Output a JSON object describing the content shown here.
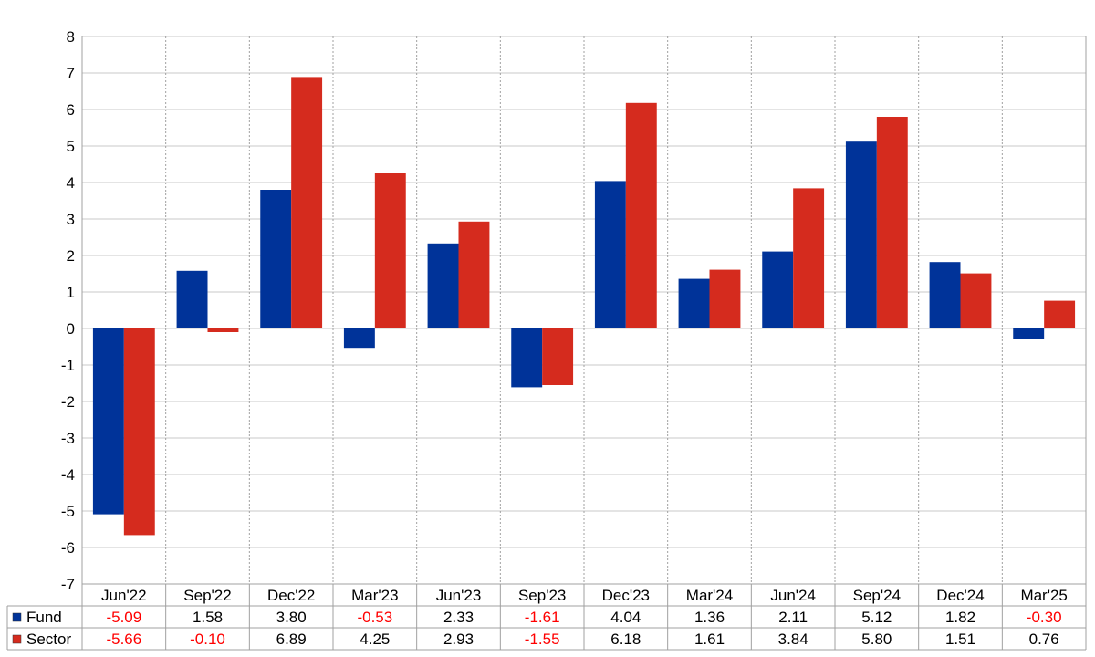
{
  "chart_data": {
    "type": "bar",
    "title": "",
    "xlabel": "",
    "ylabel": "",
    "ylim": [
      -7,
      8
    ],
    "yticks": [
      -7,
      -6,
      -5,
      -4,
      -3,
      -2,
      -1,
      0,
      1,
      2,
      3,
      4,
      5,
      6,
      7,
      8
    ],
    "grid": true,
    "legend": "data-table",
    "categories": [
      "Jun'22",
      "Sep'22",
      "Dec'22",
      "Mar'23",
      "Jun'23",
      "Sep'23",
      "Dec'23",
      "Mar'24",
      "Jun'24",
      "Sep'24",
      "Dec'24",
      "Mar'25"
    ],
    "series": [
      {
        "name": "Fund",
        "color": "#003399",
        "values": [
          -5.09,
          1.58,
          3.8,
          -0.53,
          2.33,
          -1.61,
          4.04,
          1.36,
          2.11,
          5.12,
          1.82,
          -0.3
        ],
        "labels": [
          "-5.09",
          "1.58",
          "3.80",
          "-0.53",
          "2.33",
          "-1.61",
          "4.04",
          "1.36",
          "2.11",
          "5.12",
          "1.82",
          "-0.30"
        ]
      },
      {
        "name": "Sector",
        "color": "#d52b1e",
        "values": [
          -5.66,
          -0.1,
          6.89,
          4.25,
          2.93,
          -1.55,
          6.18,
          1.61,
          3.84,
          5.8,
          1.51,
          0.76
        ],
        "labels": [
          "-5.66",
          "-0.10",
          "6.89",
          "4.25",
          "2.93",
          "-1.55",
          "6.18",
          "1.61",
          "3.84",
          "5.80",
          "1.51",
          "0.76"
        ]
      }
    ],
    "negative_color": "#ff0000",
    "positive_color": "#000000"
  }
}
